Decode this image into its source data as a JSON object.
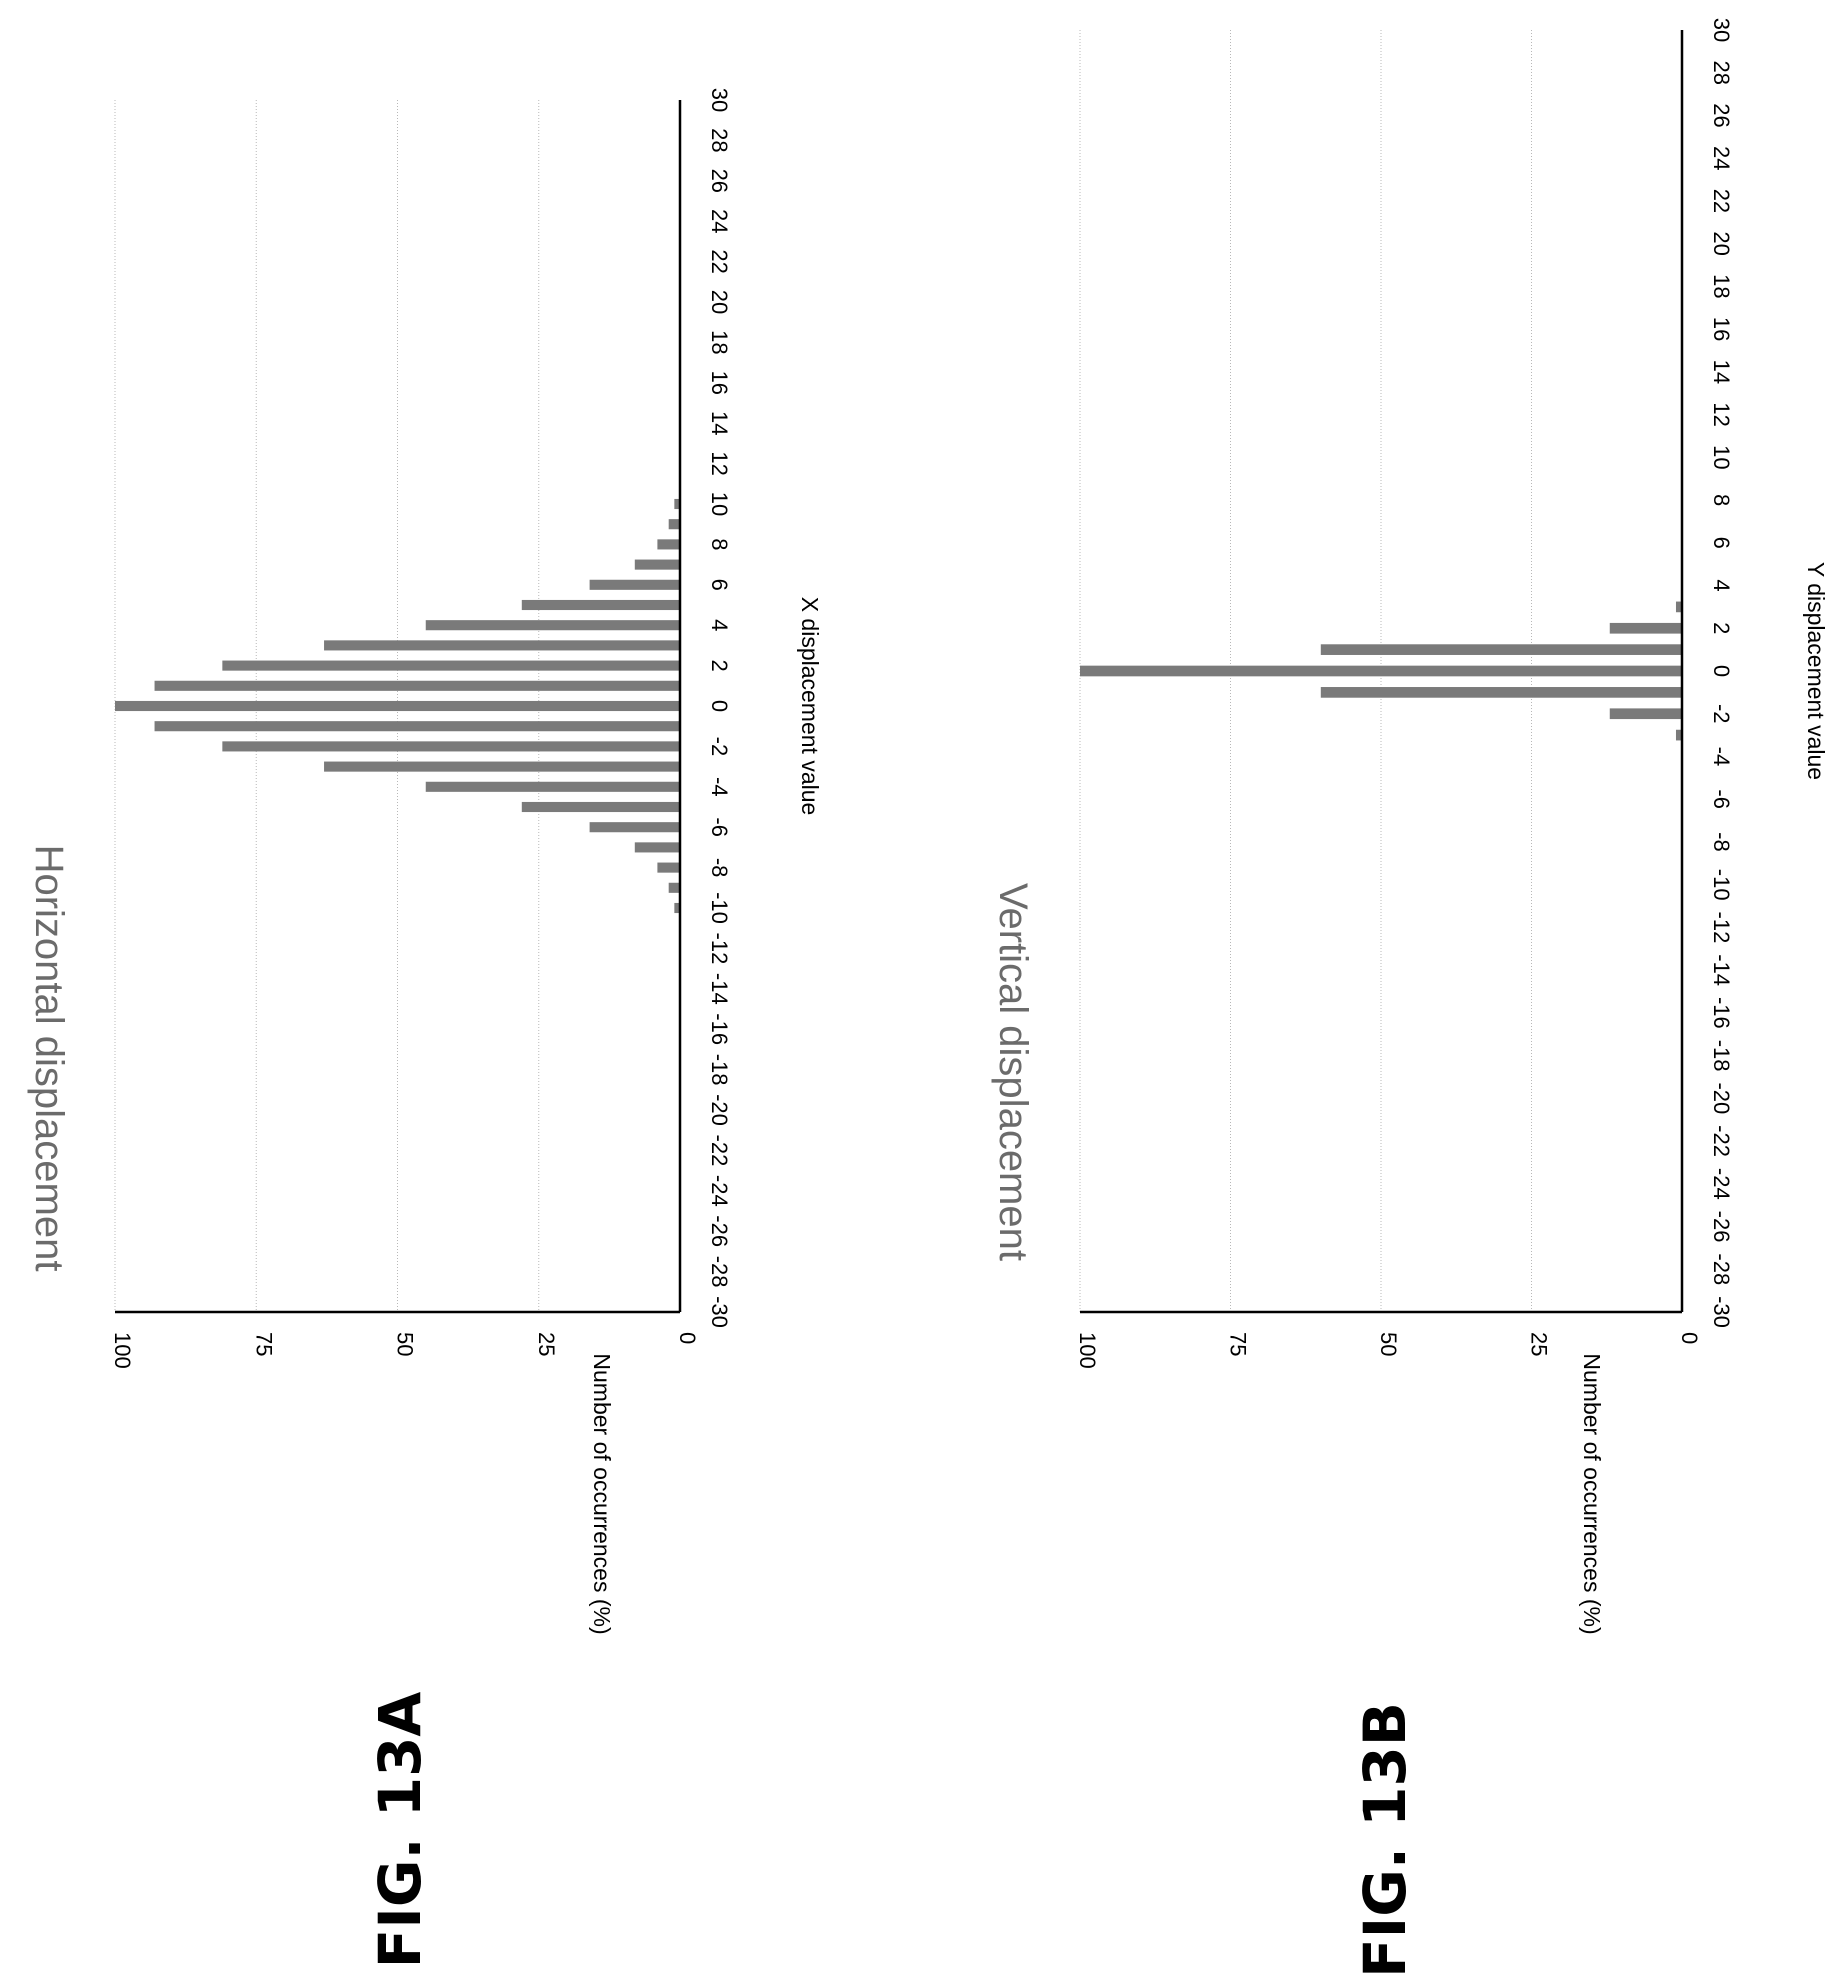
{
  "figures": [
    {
      "label": "FIG. 13A"
    },
    {
      "label": "FIG. 13B"
    }
  ],
  "chart_data": [
    {
      "type": "bar",
      "title": "Horizontal displacement",
      "xlabel": "X displacement value",
      "ylabel": "Number of occurrences (%)",
      "ylim": [
        0,
        100
      ],
      "yticks": [
        0,
        25,
        50,
        75,
        100
      ],
      "xlim": [
        -30,
        30
      ],
      "xtick_labels": [
        "-30",
        "-28",
        "-26",
        "-24",
        "-22",
        "-20",
        "-18",
        "-16",
        "-14",
        "-12",
        "-10",
        "-8",
        "-6",
        "-4",
        "-2",
        "0",
        "2",
        "4",
        "6",
        "8",
        "10",
        "12",
        "14",
        "16",
        "18",
        "20",
        "22",
        "24",
        "26",
        "28",
        "30"
      ],
      "grid": true,
      "x": [
        -10,
        -9,
        -8,
        -7,
        -6,
        -5,
        -4,
        -3,
        -2,
        -1,
        0,
        1,
        2,
        3,
        4,
        5,
        6,
        7,
        8,
        9,
        10
      ],
      "values": [
        1,
        2,
        4,
        8,
        16,
        28,
        45,
        63,
        81,
        93,
        100,
        93,
        81,
        63,
        45,
        28,
        16,
        8,
        4,
        2,
        1
      ]
    },
    {
      "type": "bar",
      "title": "Vertical displacement",
      "xlabel": "Y displacement value",
      "ylabel": "Number of occurrences (%)",
      "ylim": [
        0,
        100
      ],
      "yticks": [
        0,
        25,
        50,
        75,
        100
      ],
      "xlim": [
        -30,
        30
      ],
      "xtick_labels": [
        "-30",
        "-28",
        "-26",
        "-24",
        "-22",
        "-20",
        "-18",
        "-16",
        "-14",
        "-12",
        "-10",
        "-8",
        "-6",
        "-4",
        "-2",
        "0",
        "2",
        "4",
        "6",
        "8",
        "10",
        "12",
        "14",
        "16",
        "18",
        "20",
        "22",
        "24",
        "26",
        "28",
        "30"
      ],
      "grid": true,
      "x": [
        -3,
        -2,
        -1,
        0,
        1,
        2,
        3
      ],
      "values": [
        1,
        12,
        60,
        100,
        60,
        12,
        1
      ]
    }
  ]
}
